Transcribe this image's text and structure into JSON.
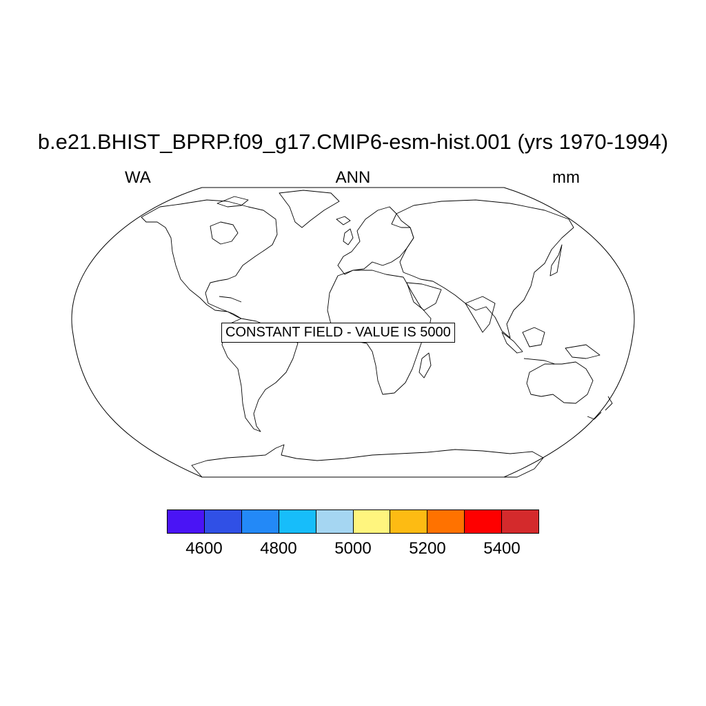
{
  "title": "b.e21.BHIST_BPRP.f09_g17.CMIP6-esm-hist.001 (yrs 1970-1994)",
  "left_string": "WA",
  "center_string": "ANN",
  "right_string": "mm",
  "annotation": "CONSTANT FIELD - VALUE IS 5000",
  "projection": "Robinson",
  "colorbar": {
    "colors": [
      "#4a14f5",
      "#3050e6",
      "#2389f7",
      "#17bdfa",
      "#a5d6f2",
      "#fff57e",
      "#fdbb13",
      "#ff7200",
      "#fe0000",
      "#d42a2c"
    ],
    "labels": [
      "4600",
      "4800",
      "5000",
      "5200",
      "5400"
    ]
  }
}
